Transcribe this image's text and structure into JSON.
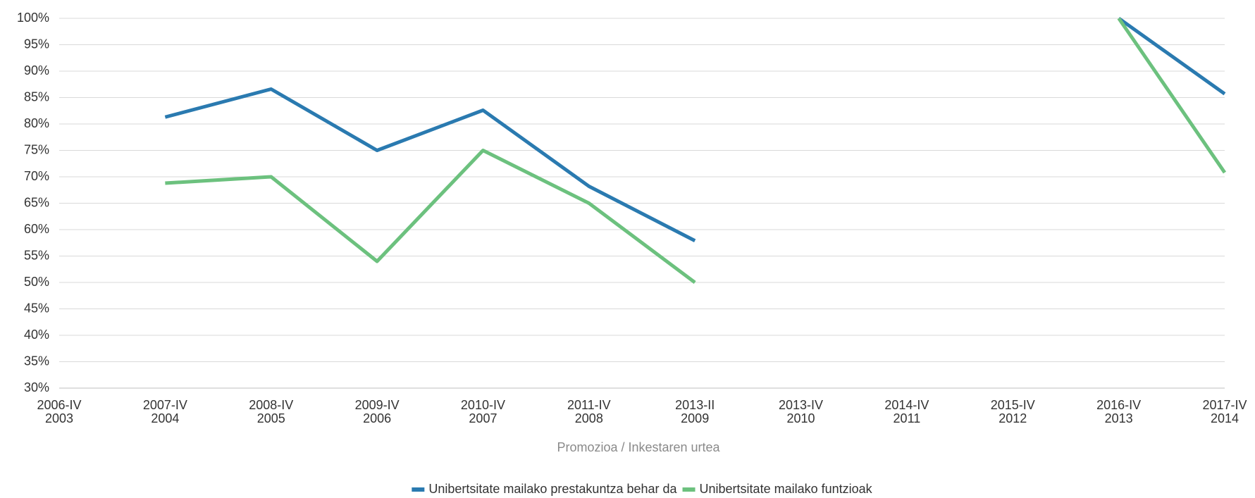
{
  "chart_data": {
    "type": "line",
    "xlabel": "Promozioa / Inkestaren urtea",
    "categories": [
      [
        "2006-IV",
        "2003"
      ],
      [
        "2007-IV",
        "2004"
      ],
      [
        "2008-IV",
        "2005"
      ],
      [
        "2009-IV",
        "2006"
      ],
      [
        "2010-IV",
        "2007"
      ],
      [
        "2011-IV",
        "2008"
      ],
      [
        "2013-II",
        "2009"
      ],
      [
        "2013-IV",
        "2010"
      ],
      [
        "2014-IV",
        "2011"
      ],
      [
        "2015-IV",
        "2012"
      ],
      [
        "2016-IV",
        "2013"
      ],
      [
        "2017-IV",
        "2014"
      ]
    ],
    "series": [
      {
        "name": "Unibertsitate mailako prestakuntza behar da",
        "color": "#2a7ab0",
        "values": [
          null,
          81.3,
          86.6,
          75,
          82.6,
          68.2,
          57.9,
          null,
          null,
          null,
          100,
          85.7
        ]
      },
      {
        "name": "Unibertsitate mailako funtzioak",
        "color": "#6cc17e",
        "values": [
          null,
          68.8,
          70,
          54,
          75,
          65,
          50,
          null,
          null,
          null,
          100,
          70.8
        ]
      }
    ],
    "ylim": [
      30,
      100
    ],
    "yticks": [
      {
        "value": 30,
        "label": "30%"
      },
      {
        "value": 35,
        "label": "35%"
      },
      {
        "value": 40,
        "label": "40%"
      },
      {
        "value": 45,
        "label": "45%"
      },
      {
        "value": 50,
        "label": "50%"
      },
      {
        "value": 55,
        "label": "55%"
      },
      {
        "value": 60,
        "label": "60%"
      },
      {
        "value": 65,
        "label": "65%"
      },
      {
        "value": 70,
        "label": "70%"
      },
      {
        "value": 75,
        "label": "75%"
      },
      {
        "value": 80,
        "label": "80%"
      },
      {
        "value": 85,
        "label": "85%"
      },
      {
        "value": 90,
        "label": "90%"
      },
      {
        "value": 95,
        "label": "95%"
      },
      {
        "value": 100,
        "label": "100%"
      }
    ],
    "grid": true,
    "legend": "bottom"
  }
}
